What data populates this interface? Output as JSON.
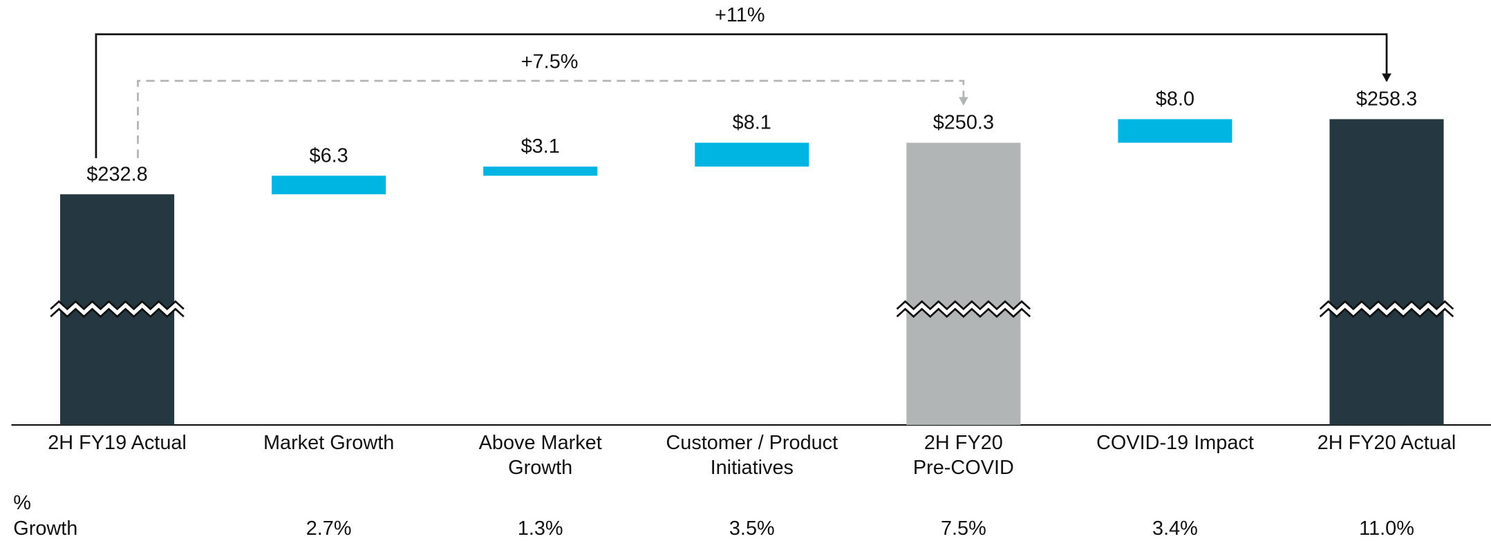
{
  "chart_data": {
    "type": "waterfall",
    "categories": [
      [
        "2H FY19 Actual"
      ],
      [
        "Market Growth"
      ],
      [
        "Above Market",
        "Growth"
      ],
      [
        "Customer / Product",
        "Initiatives"
      ],
      [
        "2H FY20",
        "Pre-COVID"
      ],
      [
        "COVID-19 Impact"
      ],
      [
        "2H FY20 Actual"
      ]
    ],
    "values": [
      232.8,
      6.3,
      3.1,
      8.1,
      250.3,
      8.0,
      258.3
    ],
    "value_labels": [
      "$232.8",
      "$6.3",
      "$3.1",
      "$8.1",
      "$250.3",
      "$8.0",
      "$258.3"
    ],
    "measure": [
      "absolute",
      "relative",
      "relative",
      "relative",
      "absolute",
      "relative",
      "absolute"
    ],
    "colors": [
      "#253842",
      "#00b5e2",
      "#00b5e2",
      "#00b5e2",
      "#b2b5b6",
      "#00b5e2",
      "#253842"
    ],
    "ylim": [
      200,
      270
    ],
    "axis_break": true,
    "growth": {
      "label": [
        "%",
        "Growth"
      ],
      "values": [
        null,
        2.7,
        1.3,
        3.5,
        7.5,
        3.4,
        11.0
      ],
      "value_labels": [
        null,
        "2.7%",
        "1.3%",
        "3.5%",
        "7.5%",
        "3.4%",
        "11.0%"
      ]
    },
    "annotations": [
      {
        "text": "+11%",
        "from": 0,
        "to": 6,
        "style": "solid",
        "color": "#111111"
      },
      {
        "text": "+7.5%",
        "from": 0,
        "to": 4,
        "style": "dashed",
        "color": "#b2b5b6"
      }
    ]
  }
}
